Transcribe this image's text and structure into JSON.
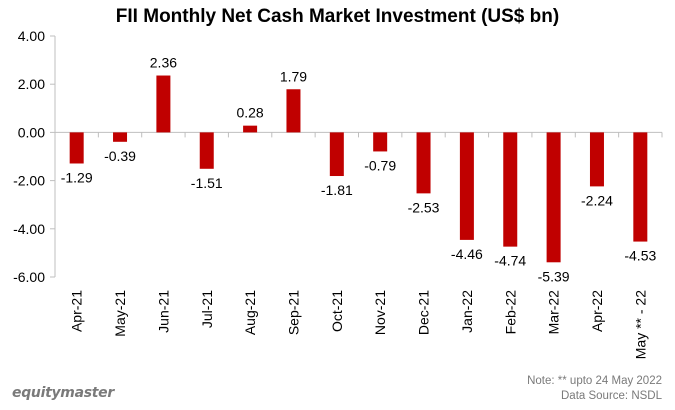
{
  "chart_data": {
    "type": "bar",
    "title": "FII Monthly Net Cash Market Investment (US$ bn)",
    "categories": [
      "Apr-21",
      "May-21",
      "Jun-21",
      "Jul-21",
      "Aug-21",
      "Sep-21",
      "Oct-21",
      "Nov-21",
      "Dec-21",
      "Jan-22",
      "Feb-22",
      "Mar-22",
      "Apr-22",
      "May ** - 22"
    ],
    "values": [
      -1.29,
      -0.39,
      2.36,
      -1.51,
      0.28,
      1.79,
      -1.81,
      -0.79,
      -2.53,
      -4.46,
      -4.74,
      -5.39,
      -2.24,
      -4.53
    ],
    "value_labels": [
      "-1.29",
      "-0.39",
      "2.36",
      "-1.51",
      "0.28",
      "1.79",
      "-1.81",
      "-0.79",
      "-2.53",
      "-4.46",
      "-4.74",
      "-5.39",
      "-2.24",
      "-4.53"
    ],
    "ylim": [
      -6,
      4
    ],
    "yticks": [
      "4.00",
      "2.00",
      "0.00",
      "-2.00",
      "-4.00",
      "-6.00"
    ],
    "ytick_values": [
      4,
      2,
      0,
      -2,
      -4,
      -6
    ],
    "grid": false,
    "bar_color": "#c00000",
    "xlabel": "",
    "ylabel": ""
  },
  "footer": {
    "brand": "equitymaster",
    "note": "Note: ** upto 24 May 2022",
    "source": "Data Source: NSDL"
  }
}
